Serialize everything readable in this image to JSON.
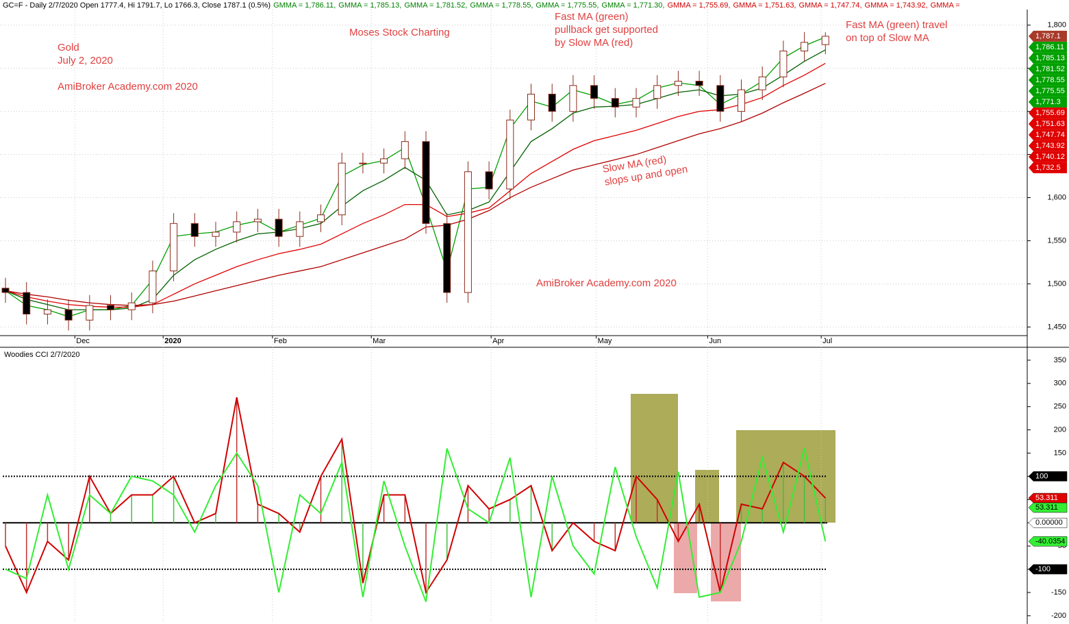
{
  "chart_data": [
    {
      "type": "candlestick",
      "header": [
        {
          "text": "GC=F - Daily 2/7/2020 Open 1777.4, Hi 1791.7, Lo 1766.3, Close 1787.1 (0.5%)",
          "color": "#000000"
        },
        {
          "text": "GMMA = 1,786.11,",
          "color": "#008000"
        },
        {
          "text": "GMMA = 1,785.13,",
          "color": "#008000"
        },
        {
          "text": "GMMA = 1,781.52,",
          "color": "#008000"
        },
        {
          "text": "GMMA = 1,778.55,",
          "color": "#008000"
        },
        {
          "text": "GMMA = 1,775.55,",
          "color": "#008000"
        },
        {
          "text": "GMMA = 1,771.30,",
          "color": "#008000"
        },
        {
          "text": "GMMA = 1,755.69,",
          "color": "#d00000"
        },
        {
          "text": "GMMA = 1,751.63,",
          "color": "#d00000"
        },
        {
          "text": "GMMA = 1,747.74,",
          "color": "#d00000"
        },
        {
          "text": "GMMA = 1,743.92,",
          "color": "#d00000"
        },
        {
          "text": "GMMA =",
          "color": "#d00000"
        }
      ],
      "annotations": [
        {
          "lines": [
            "Gold",
            "July 2, 2020"
          ]
        },
        {
          "lines": [
            "AmiBroker Academy.com  2020"
          ]
        },
        {
          "lines": [
            "Moses Stock Charting"
          ]
        },
        {
          "lines": [
            "Fast MA (green)",
            "pullback get supported",
            "by Slow MA (red)"
          ]
        },
        {
          "lines": [
            "Fast MA (green) travel",
            "on top of Slow MA"
          ]
        },
        {
          "lines": [
            "Slow MA (red)",
            "slops up and open"
          ]
        },
        {
          "lines": [
            "AmiBroker Academy.com  2020"
          ]
        }
      ],
      "annotation_color": "#e04040",
      "open": [
        1495,
        1490,
        1465,
        1470,
        1458,
        1475,
        1470,
        1478,
        1515,
        1570,
        1555,
        1560,
        1572,
        1575,
        1555,
        1572,
        1580,
        1640,
        1640,
        1645,
        1665,
        1570,
        1490,
        1630,
        1610,
        1690,
        1720,
        1700,
        1730,
        1715,
        1705,
        1715,
        1730,
        1735,
        1730,
        1700,
        1725,
        1740,
        1770,
        1777.4
      ],
      "high": [
        1507,
        1502,
        1482,
        1482,
        1487,
        1487,
        1490,
        1527,
        1582,
        1582,
        1572,
        1584,
        1587,
        1587,
        1584,
        1592,
        1652,
        1652,
        1657,
        1677,
        1677,
        1582,
        1642,
        1642,
        1702,
        1732,
        1732,
        1742,
        1742,
        1727,
        1727,
        1742,
        1747,
        1747,
        1742,
        1737,
        1752,
        1782,
        1792,
        1791.7
      ],
      "low": [
        1478,
        1453,
        1453,
        1446,
        1446,
        1458,
        1458,
        1466,
        1503,
        1543,
        1543,
        1548,
        1560,
        1543,
        1543,
        1560,
        1568,
        1628,
        1628,
        1633,
        1558,
        1478,
        1478,
        1598,
        1598,
        1678,
        1688,
        1688,
        1703,
        1693,
        1693,
        1703,
        1718,
        1718,
        1688,
        1688,
        1713,
        1728,
        1758,
        1766.3
      ],
      "close": [
        1490,
        1465,
        1470,
        1458,
        1475,
        1470,
        1478,
        1515,
        1570,
        1555,
        1560,
        1572,
        1575,
        1555,
        1572,
        1580,
        1640,
        1640,
        1645,
        1665,
        1570,
        1490,
        1630,
        1610,
        1690,
        1720,
        1700,
        1730,
        1715,
        1705,
        1715,
        1730,
        1735,
        1730,
        1700,
        1725,
        1740,
        1770,
        1780,
        1787.1
      ],
      "up_color": "#ffffff",
      "down_color": "#000000",
      "wick_color": "#8b2a1a",
      "series": [
        {
          "color": "#00a000",
          "values": [
            1492,
            1475,
            1470,
            1462,
            1470,
            1470,
            1475,
            1505,
            1555,
            1558,
            1560,
            1568,
            1573,
            1560,
            1568,
            1576,
            1625,
            1638,
            1643,
            1658,
            1590,
            1515,
            1610,
            1612,
            1680,
            1712,
            1705,
            1725,
            1718,
            1708,
            1713,
            1727,
            1733,
            1730,
            1708,
            1720,
            1735,
            1762,
            1776,
            1786.11
          ]
        },
        {
          "color": "#006000",
          "values": [
            1492,
            1482,
            1476,
            1470,
            1470,
            1470,
            1472,
            1482,
            1510,
            1528,
            1540,
            1550,
            1558,
            1560,
            1564,
            1570,
            1590,
            1608,
            1620,
            1635,
            1620,
            1580,
            1585,
            1595,
            1630,
            1665,
            1680,
            1698,
            1705,
            1706,
            1708,
            1715,
            1722,
            1725,
            1718,
            1720,
            1727,
            1742,
            1758,
            1771.3
          ]
        },
        {
          "color": "#e00000",
          "values": [
            1492,
            1485,
            1480,
            1476,
            1474,
            1473,
            1473,
            1476,
            1488,
            1500,
            1510,
            1520,
            1528,
            1535,
            1540,
            1546,
            1558,
            1570,
            1580,
            1592,
            1592,
            1578,
            1582,
            1588,
            1608,
            1628,
            1642,
            1656,
            1666,
            1672,
            1678,
            1686,
            1694,
            1700,
            1702,
            1708,
            1716,
            1730,
            1742,
            1755.69
          ]
        },
        {
          "color": "#b00000",
          "values": [
            1492,
            1488,
            1485,
            1481,
            1478,
            1476,
            1475,
            1476,
            1480,
            1486,
            1492,
            1498,
            1504,
            1510,
            1515,
            1520,
            1528,
            1536,
            1544,
            1552,
            1566,
            1568,
            1575,
            1585,
            1600,
            1612,
            1622,
            1632,
            1638,
            1644,
            1650,
            1658,
            1666,
            1674,
            1680,
            1688,
            1698,
            1710,
            1721,
            1732.5
          ]
        }
      ],
      "xticks": [
        {
          "value": 3.3,
          "label": "Dec"
        },
        {
          "value": 7.5,
          "label": "2020"
        },
        {
          "value": 12.7,
          "label": "Feb"
        },
        {
          "value": 17.4,
          "label": "Mar"
        },
        {
          "value": 23.1,
          "label": "Apr"
        },
        {
          "value": 28.1,
          "label": "May"
        },
        {
          "value": 33.4,
          "label": "Jun"
        },
        {
          "value": 38.8,
          "label": "Jul"
        }
      ],
      "ylim": [
        1440,
        1818
      ],
      "yticks": [
        {
          "value": 1450,
          "label": "1,450"
        },
        {
          "value": 1500,
          "label": "1,500"
        },
        {
          "value": 1550,
          "label": "1,550"
        },
        {
          "value": 1600,
          "label": "1,600"
        },
        {
          "value": 1650,
          "label": "1,650"
        },
        {
          "value": 1700,
          "label": "1,700"
        },
        {
          "value": 1750,
          "label": "1,750"
        },
        {
          "value": 1800,
          "label": "1,800"
        }
      ],
      "grid": true,
      "price_tags": [
        {
          "value": 1787.1,
          "label": "1,787.1",
          "bg": "#a83a2a"
        },
        {
          "value": 1786.11,
          "label": "1,786.11",
          "bg": "#00a000"
        },
        {
          "value": 1785.13,
          "label": "1,785.13",
          "bg": "#00a000"
        },
        {
          "value": 1781.52,
          "label": "1,781.52",
          "bg": "#00a000"
        },
        {
          "value": 1778.55,
          "label": "1,778.55",
          "bg": "#00a000"
        },
        {
          "value": 1775.55,
          "label": "1,775.55",
          "bg": "#00a000"
        },
        {
          "value": 1771.3,
          "label": "1,771.3",
          "bg": "#00a000"
        },
        {
          "value": 1755.69,
          "label": "1,755.69",
          "bg": "#e00000"
        },
        {
          "value": 1751.63,
          "label": "1,751.63",
          "bg": "#e00000"
        },
        {
          "value": 1747.74,
          "label": "1,747.74",
          "bg": "#e00000"
        },
        {
          "value": 1743.92,
          "label": "1,743.92",
          "bg": "#e00000"
        },
        {
          "value": 1740.12,
          "label": "1,740.12",
          "bg": "#e00000"
        },
        {
          "value": 1732.5,
          "label": "1,732.5",
          "bg": "#e00000"
        }
      ]
    },
    {
      "type": "line",
      "title": "Woodies CCI  2/7/2020",
      "series": [
        {
          "color": "#d00000",
          "values": [
            -50,
            -150,
            -40,
            -80,
            100,
            20,
            60,
            60,
            100,
            0,
            20,
            270,
            40,
            20,
            -20,
            100,
            180,
            -130,
            60,
            60,
            -150,
            -80,
            80,
            30,
            50,
            80,
            -60,
            0,
            -40,
            -60,
            100,
            50,
            -40,
            40,
            -150,
            40,
            30,
            130,
            100,
            53.311
          ]
        },
        {
          "color": "#33ee33",
          "values": [
            -100,
            -120,
            60,
            -100,
            60,
            20,
            100,
            90,
            60,
            -20,
            80,
            150,
            80,
            -150,
            60,
            20,
            130,
            -160,
            90,
            -50,
            -170,
            160,
            30,
            0,
            140,
            -160,
            100,
            -50,
            -110,
            120,
            -30,
            -140,
            110,
            -160,
            -150,
            -40,
            140,
            -20,
            160,
            -40.0354
          ]
        }
      ],
      "histogram_colors": [
        "#c03030",
        "#c03030",
        "#c03030",
        "#c03030",
        "#c03030",
        "#40c040",
        "#40c040",
        "#40c040",
        "#40c040",
        "#40c040",
        "#40c040",
        "#c03030",
        "#c03030",
        "#40c040",
        "#40c040",
        "#c03030",
        "#40c040",
        "#40c040",
        "#c03030",
        "#c03030",
        "#c03030",
        "#40c040",
        "#c03030",
        "#c03030",
        "#40c040",
        "#40c040",
        "#40c040",
        "#40c040",
        "#c03030",
        "#c03030",
        "#c03030",
        "#c03030",
        "#c03030",
        "#c03030",
        "#c03030",
        "#40c040",
        "#40c040",
        "#40c040",
        "#40c040",
        "#40c040"
      ],
      "ref_lines": [
        100,
        0,
        -100
      ],
      "ylim": [
        -209,
        366
      ],
      "yticks": [
        -200,
        -150,
        -100,
        -50,
        0,
        50,
        100,
        150,
        200,
        250,
        300,
        350
      ],
      "value_tags": [
        {
          "value": 100,
          "label": "100",
          "bg": "#000000",
          "fg": "#ffffff"
        },
        {
          "value": 53.311,
          "label": "53.311",
          "bg": "#e00000",
          "fg": "#ffffff"
        },
        {
          "value": 53.311,
          "label": "53.311",
          "bg": "#33ee33",
          "fg": "#000000"
        },
        {
          "value": 0,
          "label": "0.00000",
          "bg": "#ffffff",
          "fg": "#000000"
        },
        {
          "value": -40.0354,
          "label": "-40.0354",
          "bg": "#33ee33",
          "fg": "#000000"
        },
        {
          "value": -100,
          "label": "-100",
          "bg": "#000000",
          "fg": "#ffffff"
        }
      ]
    }
  ]
}
